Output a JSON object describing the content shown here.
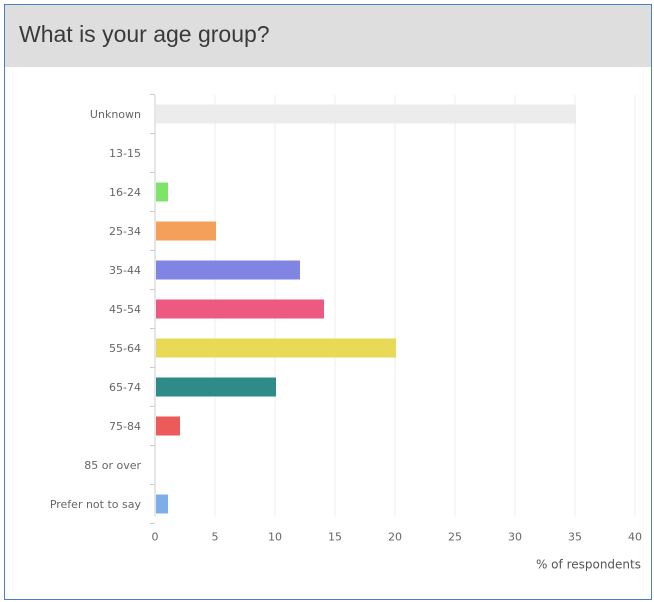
{
  "question": {
    "title": "What is your age group?"
  },
  "chart_data": {
    "type": "bar",
    "orientation": "horizontal",
    "title": "What is your age group?",
    "categories": [
      "Unknown",
      "13-15",
      "16-24",
      "25-34",
      "35-44",
      "45-54",
      "55-64",
      "65-74",
      "75-84",
      "85 or over",
      "Prefer not to say"
    ],
    "values": [
      35,
      0,
      1,
      5,
      12,
      14,
      20,
      10,
      2,
      0,
      1
    ],
    "colors": [
      "#ececec",
      "#dddddd",
      "#7fe36a",
      "#f4a05a",
      "#8084e3",
      "#ec5a82",
      "#e8d956",
      "#2e8b87",
      "#ec5a5a",
      "#dddddd",
      "#7eaee8"
    ],
    "x_ticks": [
      0,
      5,
      10,
      15,
      20,
      25,
      30,
      35,
      40
    ],
    "xlim": [
      0,
      40
    ],
    "xlabel": "% of respondents",
    "ylabel": "",
    "grid": true,
    "legend": "none"
  }
}
